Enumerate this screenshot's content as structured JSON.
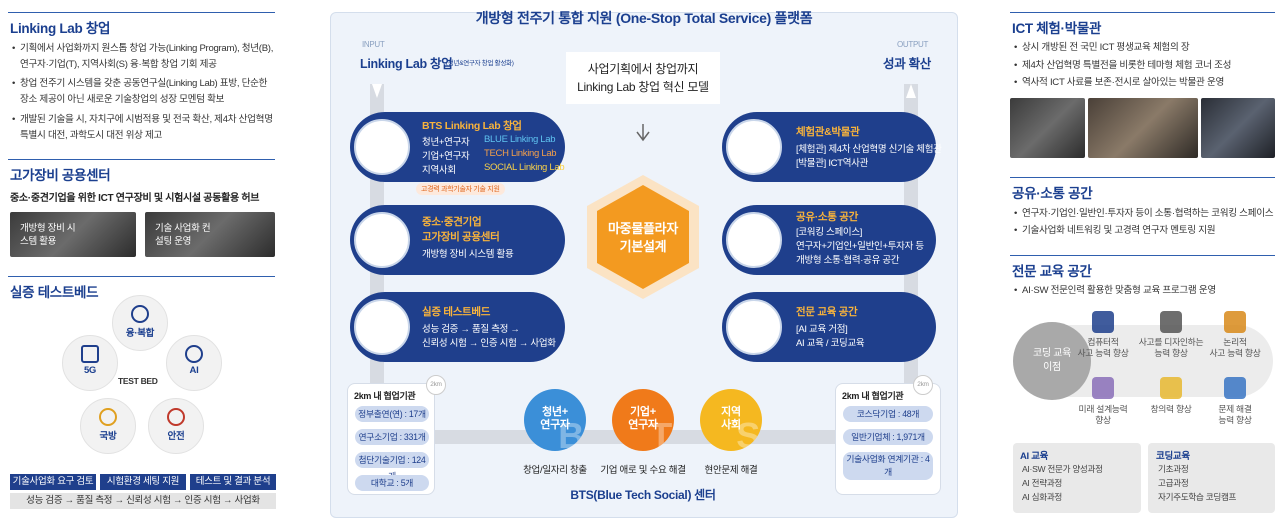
{
  "left": {
    "linking_lab": {
      "title": "Linking Lab 창업",
      "bullets": [
        "기획에서 사업화까지 원스톱 창업 가능(Linking Program), 청년(B), 연구자·기업(T), 지역사회(S) 융·복합 창업 기회 제공",
        "창업 전주기 시스템을 갖춘 공동연구실(Linking Lab) 표방, 단순한 장소 제공이 아닌 새로운 기술창업의 성장 모멘텀 확보",
        "개발된 기술을 시, 자치구에 시범적용 및 전국 확산, 제4차 산업혁명 특별시 대전, 과학도시 대전 위상 제고"
      ]
    },
    "equipment": {
      "title": "고가장비 공용센터",
      "subtitle": "중소·중견기업을 위한 ICT 연구장비 및 시험시설 공동활용 허브",
      "images": [
        "개방형 장비 시스템 활용",
        "기술 사업화 컨설팅 운영"
      ]
    },
    "testbed": {
      "title": "실증 테스트베드",
      "center": "TEST BED",
      "fields": [
        "융·복합",
        "AI",
        "안전",
        "국방",
        "5G"
      ],
      "steps": [
        "기술사업화 요구 검토",
        "시험환경 세팅 지원",
        "테스트 및 결과 분석"
      ],
      "process": "성능 검증 → 품질 측정 → 신뢰성 시험 → 인증 시험 → 사업화"
    }
  },
  "center": {
    "title": "개방형 전주기 통합 지원 (One-Stop Total Service) 플랫폼",
    "input": {
      "tag": "INPUT",
      "label": "Linking Lab 창업",
      "note": "(청년&연구자 창업 활성화)"
    },
    "output": {
      "tag": "OUTPUT",
      "label": "성과 확산"
    },
    "model": [
      "사업기획에서 창업까지",
      "Linking Lab 창업 혁신 모델"
    ],
    "hub": [
      "마중물플라자",
      "기본설계"
    ],
    "left_boxes": [
      {
        "title": "BTS Linking Lab 창업",
        "rows": [
          [
            "청년+연구자",
            "BLUE Linking Lab"
          ],
          [
            "기업+연구자",
            "TECH Linking Lab"
          ],
          [
            "지역사회",
            "SOCIAL Linking Lab"
          ]
        ],
        "tag": "고경력 과학기술자 기술 지원"
      },
      {
        "title": [
          "중소·중견기업",
          "고가장비 공용센터"
        ],
        "text": "개방형 장비 시스템 활용"
      },
      {
        "title": "실증 테스트베드",
        "text": [
          "성능 검증 → 품질 측정 →",
          "신뢰성 시험 → 인증 시험 → 사업화"
        ]
      }
    ],
    "right_boxes": [
      {
        "title": "체험관&박물관",
        "text": [
          "[체험관] 제4차 산업혁명 신기술 체험관",
          "[박물관] ICT역사관"
        ]
      },
      {
        "title": "공유·소통 공간",
        "text": [
          "[코워킹 스페이스]",
          "연구자+기업인+일반인+투자자 등",
          "개방형 소통·협력·공유 공간"
        ]
      },
      {
        "title": "전문 교육 공간",
        "text": [
          "[AI 교육 거점]",
          "AI 교육 / 코딩교육"
        ]
      }
    ],
    "partners_left": {
      "badge": "2km",
      "title": "2km 내 협업기관",
      "items": [
        "정부출연(연) : 17개",
        "연구소기업 : 331개",
        "첨단기술기업 : 124개",
        "대학교 : 5개"
      ]
    },
    "partners_right": {
      "badge": "2km",
      "title": "2km 내 협업기관",
      "items": [
        "코스닥기업 : 48개",
        "일반기업체 : 1,971개",
        "기술사업화 연계기관 : 4개"
      ]
    },
    "bts": [
      {
        "label": [
          "청년+",
          "연구자"
        ],
        "letter": "B",
        "caption": "창업/일자리 창출"
      },
      {
        "label": [
          "기업+",
          "연구자"
        ],
        "letter": "T",
        "caption": "기업 애로 및 수요 해결"
      },
      {
        "label": [
          "지역",
          "사회"
        ],
        "letter": "S",
        "caption": "현안문제 해결"
      }
    ],
    "bts_title": "BTS(Blue Tech Social) 센터"
  },
  "right": {
    "museum": {
      "title": "ICT 체험·박물관",
      "bullets": [
        "상시 개방된 전 국민 ICT 평생교육 체험의 장",
        "제4차 산업혁명 특별전을 비롯한 테마형 체험 코너 조성",
        "역사적 ICT 사료를 보존·전시로 살아있는 박물관 운영"
      ]
    },
    "sharing": {
      "title": "공유·소통 공간",
      "bullets": [
        "연구자·기업인·일반인·투자자 등이 소통·협력하는 코워킹 스페이스",
        "기술사업화 네트워킹 및 고경력 연구자 멘토링 지원"
      ]
    },
    "education": {
      "title": "전문 교육 공간",
      "bullets": [
        "AI·SW 전문인력 활용한 맞춤형 교육 프로그램 운영"
      ],
      "benefit": [
        "코딩 교육",
        "이점"
      ],
      "items": [
        [
          "컴퓨터적",
          "사고 능력 향상"
        ],
        [
          "사고를 디자인하는",
          "능력 향상"
        ],
        [
          "논리적",
          "사고 능력 향상"
        ],
        [
          "미래 설계능력",
          "향상"
        ],
        [
          "창의력 향상"
        ],
        [
          "문제 해결",
          "능력 향상"
        ]
      ],
      "courses": [
        {
          "title": "AI 교육",
          "items": [
            "AI·SW 전문가 양성과정",
            "AI 전략과정",
            "AI 심화과정"
          ]
        },
        {
          "title": "코딩교육",
          "items": [
            "기초과정",
            "고급과정",
            "자기주도학습 코딩캠프"
          ]
        }
      ]
    }
  }
}
